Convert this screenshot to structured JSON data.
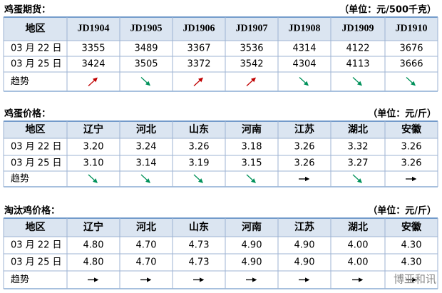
{
  "sections": [
    {
      "title": "鸡蛋期货：",
      "unit": "（单位：元/500千克）",
      "table": {
        "header": [
          "地区",
          "JD1904",
          "JD1905",
          "JD1906",
          "JD1907",
          "JD1908",
          "JD1909",
          "JD1910"
        ],
        "rows": [
          [
            "03 月 22 日",
            "3355",
            "3489",
            "3367",
            "3536",
            "4314",
            "4122",
            "3676"
          ],
          [
            "03 月 25 日",
            "3424",
            "3505",
            "3372",
            "3542",
            "4304",
            "4113",
            "3666"
          ],
          [
            "趋势"
          ]
        ]
      }
    },
    {
      "title": "鸡蛋价格：",
      "unit": "（单位：元/斤）",
      "table": {
        "header": [
          "地区",
          "辽宁",
          "河北",
          "山东",
          "河南",
          "江苏",
          "湖北",
          "安徽"
        ],
        "rows": [
          [
            "03 月 22 日",
            "3.20",
            "3.24",
            "3.26",
            "3.18",
            "3.26",
            "3.32",
            "3.26"
          ],
          [
            "03 月 25 日",
            "3.10",
            "3.14",
            "3.19",
            "3.15",
            "3.26",
            "3.27",
            "3.26"
          ],
          [
            "趋势"
          ]
        ]
      }
    },
    {
      "title": "淘汰鸡价格：",
      "unit": "（单位：元/斤）",
      "table": {
        "header": [
          "地区",
          "辽宁",
          "河北",
          "山东",
          "河南",
          "江苏",
          "湖北",
          "安徽"
        ],
        "rows": [
          [
            "03 月 22 日",
            "4.80",
            "4.70",
            "4.73",
            "4.90",
            "4.90",
            "4.00",
            "4.30"
          ],
          [
            "03 月 25 日",
            "4.80",
            "4.70",
            "4.73",
            "4.90",
            "4.90",
            "4.00",
            "4.30"
          ],
          [
            "趋势"
          ]
        ]
      }
    }
  ],
  "watermark": "博亚和讯"
}
